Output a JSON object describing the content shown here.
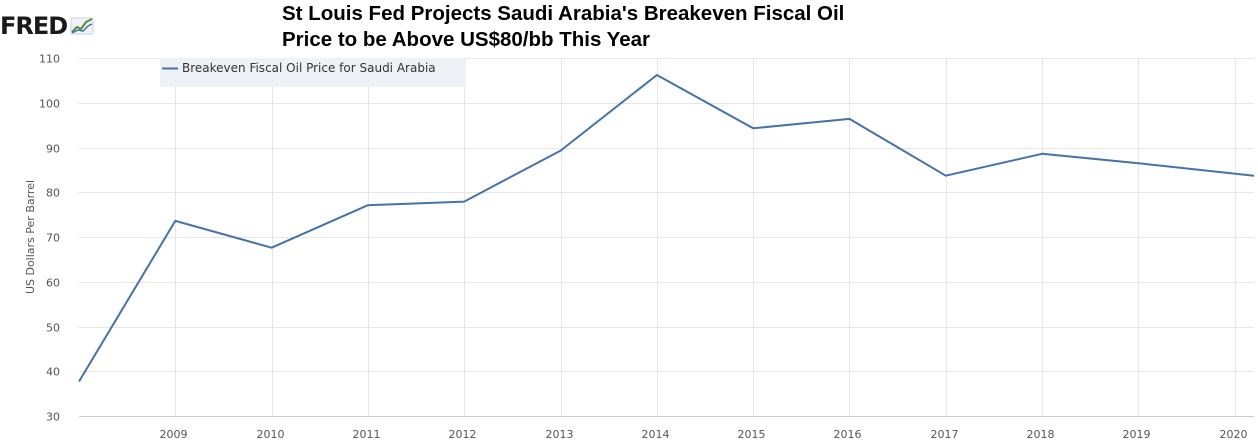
{
  "logo": {
    "text": "FRED"
  },
  "title": {
    "line1": "St Louis Fed Projects Saudi Arabia's Breakeven  Fiscal Oil",
    "line2": "Price to be Above US$80/bb This Year"
  },
  "chart_data": {
    "type": "line",
    "title": "St Louis Fed Projects Saudi Arabia's Breakeven  Fiscal Oil Price to be Above US$80/bb This Year",
    "xlabel": "",
    "ylabel": "US Dollars Per Barrel",
    "ylim": [
      30,
      110
    ],
    "xlim": [
      2008,
      2020.2
    ],
    "yticks": [
      30,
      40,
      50,
      60,
      70,
      80,
      90,
      100,
      110
    ],
    "xticks": [
      "2009",
      "2010",
      "2011",
      "2012",
      "2013",
      "2014",
      "2015",
      "2016",
      "2017",
      "2018",
      "2019",
      "2020"
    ],
    "grid": true,
    "legend_position": "top-left",
    "series": [
      {
        "name": "Breakeven Fiscal Oil Price for Saudi Arabia",
        "color": "#4572a7",
        "x": [
          2008,
          2009,
          2010,
          2011,
          2012,
          2013,
          2014,
          2015,
          2016,
          2017,
          2018,
          2019,
          2020.2
        ],
        "values": [
          37.7,
          73.6,
          67.6,
          77.1,
          77.9,
          89.3,
          106.2,
          94.3,
          96.4,
          83.7,
          88.6,
          86.5,
          83.7
        ]
      }
    ]
  }
}
